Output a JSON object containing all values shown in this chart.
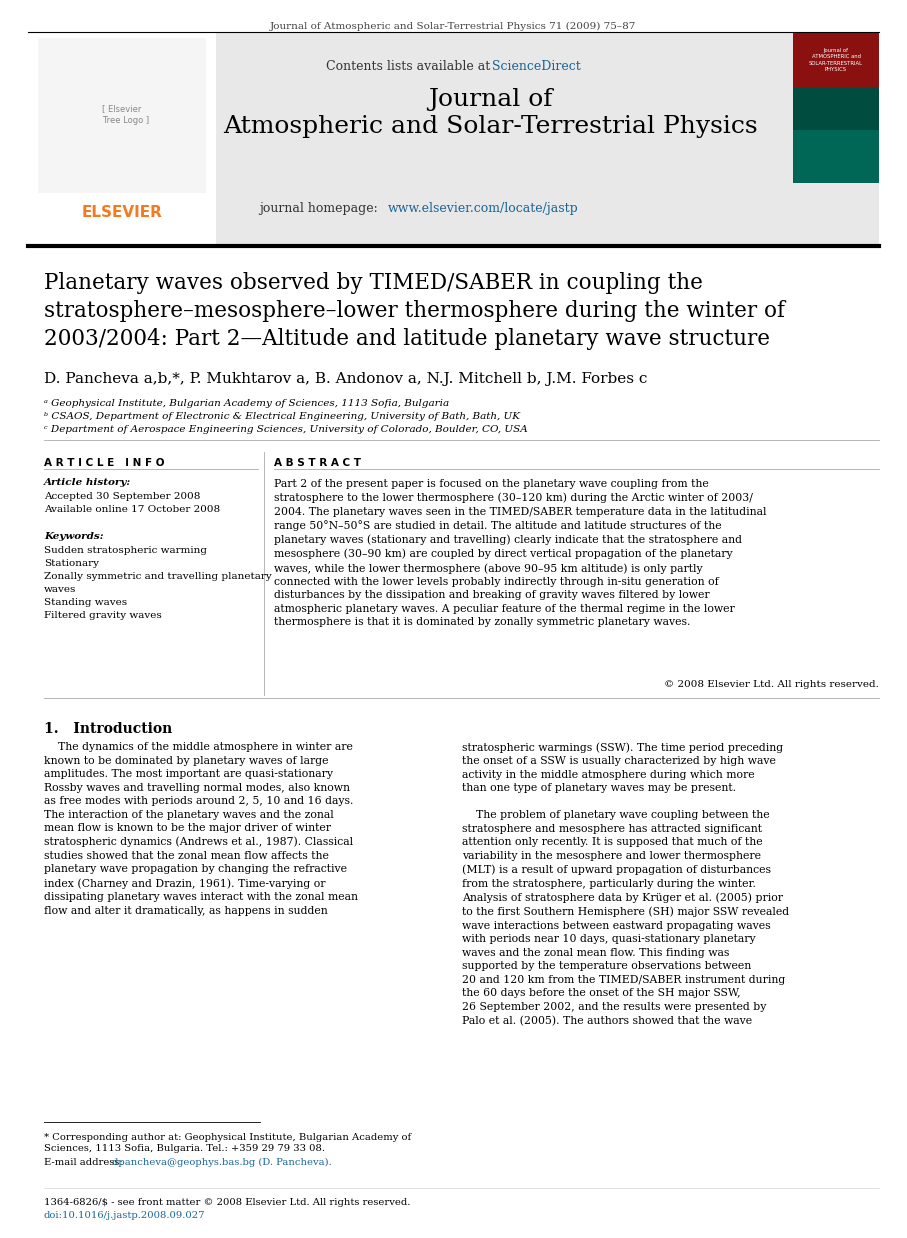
{
  "journal_header": "Journal of Atmospheric and Solar-Terrestrial Physics 71 (2009) 75–87",
  "contents_text": "Contents lists available at",
  "sciencedirect_text": "ScienceDirect",
  "sciencedirect_color": "#1a6496",
  "journal_title_line1": "Journal of",
  "journal_title_line2": "Atmospheric and Solar-Terrestrial Physics",
  "journal_homepage_label": "journal homepage:",
  "journal_url": "www.elsevier.com/locate/jastp",
  "journal_url_color": "#1a6496",
  "paper_title": "Planetary waves observed by TIMED/SABER in coupling the\nstratosphere–mesosphere–lower thermosphere during the winter of\n2003/2004: Part 2—Altitude and latitude planetary wave structure",
  "authors": "D. Pancheva a,b,*, P. Mukhtarov a, B. Andonov a, N.J. Mitchell b, J.M. Forbes c",
  "affil_a": "ᵃ Geophysical Institute, Bulgarian Academy of Sciences, 1113 Sofia, Bulgaria",
  "affil_b": "ᵇ CSAOS, Department of Electronic & Electrical Engineering, University of Bath, Bath, UK",
  "affil_c": "ᶜ Department of Aerospace Engineering Sciences, University of Colorado, Boulder, CO, USA",
  "article_info_title": "A R T I C L E   I N F O",
  "article_history_label": "Article history:",
  "accepted_text": "Accepted 30 September 2008",
  "available_text": "Available online 17 October 2008",
  "keywords_label": "Keywords:",
  "keyword1": "Sudden stratospheric warming",
  "keyword2": "Stationary",
  "keyword3": "Zonally symmetric and travelling planetary",
  "keyword4": "waves",
  "keyword5": "Standing waves",
  "keyword6": "Filtered gravity waves",
  "abstract_title": "A B S T R A C T",
  "abstract_text": "Part 2 of the present paper is focused on the planetary wave coupling from the\nstratosphere to the lower thermosphere (30–120 km) during the Arctic winter of 2003/\n2004. The planetary waves seen in the TIMED/SABER temperature data in the latitudinal\nrange 50°N–50°S are studied in detail. The altitude and latitude structures of the\nplanetary waves (stationary and travelling) clearly indicate that the stratosphere and\nmesosphere (30–90 km) are coupled by direct vertical propagation of the planetary\nwaves, while the lower thermosphere (above 90–95 km altitude) is only partly\nconnected with the lower levels probably indirectly through in-situ generation of\ndisturbances by the dissipation and breaking of gravity waves filtered by lower\natmospheric planetary waves. A peculiar feature of the thermal regime in the lower\nthermosphere is that it is dominated by zonally symmetric planetary waves.",
  "copyright_text": "© 2008 Elsevier Ltd. All rights reserved.",
  "section_title": "1.   Introduction",
  "intro_col1": "    The dynamics of the middle atmosphere in winter are\nknown to be dominated by planetary waves of large\namplitudes. The most important are quasi-stationary\nRossby waves and travelling normal modes, also known\nas free modes with periods around 2, 5, 10 and 16 days.\nThe interaction of the planetary waves and the zonal\nmean flow is known to be the major driver of winter\nstratospheric dynamics (Andrews et al., 1987). Classical\nstudies showed that the zonal mean flow affects the\nplanetary wave propagation by changing the refractive\nindex (Charney and Drazin, 1961). Time-varying or\ndissipating planetary waves interact with the zonal mean\nflow and alter it dramatically, as happens in sudden",
  "intro_col2": "stratospheric warmings (SSW). The time period preceding\nthe onset of a SSW is usually characterized by high wave\nactivity in the middle atmosphere during which more\nthan one type of planetary waves may be present.\n\n    The problem of planetary wave coupling between the\nstratosphere and mesosphere has attracted significant\nattention only recently. It is supposed that much of the\nvariability in the mesosphere and lower thermosphere\n(MLT) is a result of upward propagation of disturbances\nfrom the stratosphere, particularly during the winter.\nAnalysis of stratosphere data by Krüger et al. (2005) prior\nto the first Southern Hemisphere (SH) major SSW revealed\nwave interactions between eastward propagating waves\nwith periods near 10 days, quasi-stationary planetary\nwaves and the zonal mean flow. This finding was\nsupported by the temperature observations between\n20 and 120 km from the TIMED/SABER instrument during\nthe 60 days before the onset of the SH major SSW,\n26 September 2002, and the results were presented by\nPalo et al. (2005). The authors showed that the wave",
  "footnote_star": "* Corresponding author at: Geophysical Institute, Bulgarian Academy of\nSciences, 1113 Sofia, Bulgaria. Tel.: +359 29 79 33 08.",
  "footnote_email_label": "E-mail address:",
  "footnote_email": "dpancheva@geophys.bas.bg (D. Pancheva).",
  "footnote_email_color": "#1a6496",
  "footer_issn": "1364-6826/$ - see front matter © 2008 Elsevier Ltd. All rights reserved.",
  "footer_doi": "doi:10.1016/j.jastp.2008.09.027",
  "footer_doi_color": "#1a6496",
  "bg_color": "#ffffff",
  "text_color": "#000000",
  "header_bg": "#e8e8e8",
  "elsevier_color": "#f47920"
}
